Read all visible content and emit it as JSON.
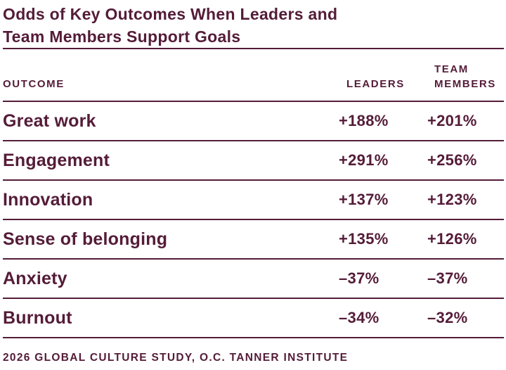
{
  "title": {
    "line1": "Odds of Key Outcomes When Leaders and",
    "line2": "Team Members Support Goals"
  },
  "table": {
    "header": {
      "outcome": "OUTCOME",
      "leaders": "LEADERS",
      "team_line1": "TEAM",
      "team_line2": "MEMBERS"
    },
    "rows": [
      {
        "outcome": "Great work",
        "leaders": "+188%",
        "team_members": "+201%"
      },
      {
        "outcome": "Engagement",
        "leaders": "+291%",
        "team_members": "+256%"
      },
      {
        "outcome": "Innovation",
        "leaders": "+137%",
        "team_members": "+123%"
      },
      {
        "outcome": "Sense of belonging",
        "leaders": "+135%",
        "team_members": "+126%"
      },
      {
        "outcome": "Anxiety",
        "leaders": "–37%",
        "team_members": "–37%"
      },
      {
        "outcome": "Burnout",
        "leaders": "–34%",
        "team_members": "–32%"
      }
    ]
  },
  "footer": {
    "source": "2026 GLOBAL CULTURE STUDY, O.C. TANNER INSTITUTE"
  },
  "colors": {
    "maroon": "#541C38",
    "background": "#FFFFFF"
  },
  "chart_data": {
    "type": "table",
    "title": "Odds of Key Outcomes When Leaders and Team Members Support Goals",
    "columns": [
      "OUTCOME",
      "LEADERS",
      "TEAM MEMBERS"
    ],
    "rows": [
      [
        "Great work",
        "+188%",
        "+201%"
      ],
      [
        "Engagement",
        "+291%",
        "+256%"
      ],
      [
        "Innovation",
        "+137%",
        "+123%"
      ],
      [
        "Sense of belonging",
        "+135%",
        "+126%"
      ],
      [
        "Anxiety",
        "–37%",
        "–37%"
      ],
      [
        "Burnout",
        "–34%",
        "–32%"
      ]
    ],
    "values_numeric_pct": {
      "leaders": [
        188,
        291,
        137,
        135,
        -37,
        -34
      ],
      "team_members": [
        201,
        256,
        123,
        126,
        -37,
        -32
      ]
    },
    "source": "2026 Global Culture Study, O.C. Tanner Institute",
    "layout": {
      "numeric_columns_alignment": "left",
      "grid": "horizontal rules only"
    }
  }
}
